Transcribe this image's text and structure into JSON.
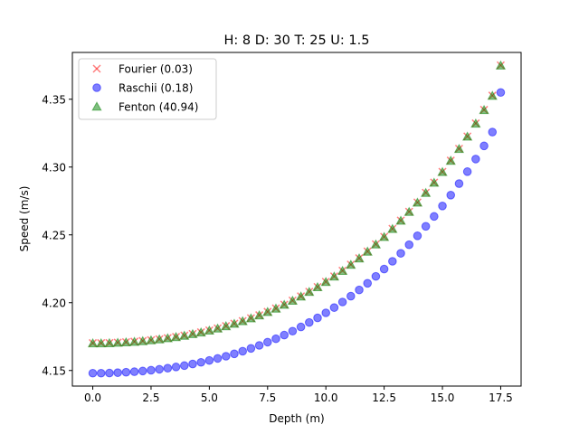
{
  "chart_data": {
    "type": "scatter",
    "title": "H: 8 D: 30 T: 25 U: 1.5",
    "xlabel": "Depth (m)",
    "ylabel": "Speed (m/s)",
    "xlim": [
      -0.875,
      18.375
    ],
    "ylim": [
      4.1385,
      4.3845
    ],
    "xticks": [
      0.0,
      2.5,
      5.0,
      7.5,
      10.0,
      12.5,
      15.0,
      17.5
    ],
    "xtick_labels": [
      "0.0",
      "2.5",
      "5.0",
      "7.5",
      "10.0",
      "12.5",
      "15.0",
      "17.5"
    ],
    "yticks": [
      4.15,
      4.2,
      4.25,
      4.3,
      4.35
    ],
    "ytick_labels": [
      "4.15",
      "4.20",
      "4.25",
      "4.30",
      "4.35"
    ],
    "grid": false,
    "legend_position": "top-left",
    "x": [
      0.0,
      0.357,
      0.714,
      1.071,
      1.429,
      1.786,
      2.143,
      2.5,
      2.857,
      3.214,
      3.571,
      3.929,
      4.286,
      4.643,
      5.0,
      5.357,
      5.714,
      6.071,
      6.429,
      6.786,
      7.143,
      7.5,
      7.857,
      8.214,
      8.571,
      8.929,
      9.286,
      9.643,
      10.0,
      10.357,
      10.714,
      11.071,
      11.429,
      11.786,
      12.143,
      12.5,
      12.857,
      13.214,
      13.571,
      13.929,
      14.286,
      14.643,
      15.0,
      15.357,
      15.714,
      16.071,
      16.429,
      16.786,
      17.143,
      17.5
    ],
    "series": [
      {
        "name": "Fourier (0.03)",
        "marker": "x",
        "color": "#ff0000",
        "values": [
          4.1702,
          4.1702,
          4.1703,
          4.1706,
          4.1709,
          4.1713,
          4.1718,
          4.1724,
          4.1731,
          4.1739,
          4.1748,
          4.1758,
          4.177,
          4.1782,
          4.1796,
          4.1811,
          4.1828,
          4.1846,
          4.1865,
          4.1886,
          4.1908,
          4.1933,
          4.1958,
          4.1986,
          4.2016,
          4.2047,
          4.2081,
          4.2116,
          4.2154,
          4.2194,
          4.2236,
          4.2281,
          4.2328,
          4.2378,
          4.2431,
          4.2486,
          4.2545,
          4.2606,
          4.2671,
          4.2739,
          4.2811,
          4.2886,
          4.2965,
          4.3048,
          4.3135,
          4.3226,
          4.3322,
          4.3422,
          4.3527,
          4.375
        ]
      },
      {
        "name": "Raschii (0.18)",
        "marker": "o",
        "color": "#0000ff",
        "values": [
          4.148,
          4.148,
          4.1481,
          4.1484,
          4.1487,
          4.1491,
          4.1496,
          4.1502,
          4.1509,
          4.1517,
          4.1526,
          4.1536,
          4.1548,
          4.156,
          4.1574,
          4.1589,
          4.1605,
          4.1623,
          4.1642,
          4.1663,
          4.1685,
          4.1709,
          4.1734,
          4.1761,
          4.179,
          4.1821,
          4.1854,
          4.1888,
          4.1925,
          4.1964,
          4.2005,
          4.2048,
          4.2094,
          4.2143,
          4.2194,
          4.2248,
          4.2305,
          4.2364,
          4.2427,
          4.2493,
          4.2563,
          4.2636,
          4.2713,
          4.2793,
          4.2878,
          4.2966,
          4.3059,
          4.3156,
          4.3258,
          4.355
        ]
      },
      {
        "name": "Fenton (40.94)",
        "marker": "^",
        "color": "#008000",
        "values": [
          4.17,
          4.17,
          4.1701,
          4.1704,
          4.1707,
          4.1711,
          4.1716,
          4.1722,
          4.1729,
          4.1737,
          4.1746,
          4.1756,
          4.1768,
          4.178,
          4.1794,
          4.1809,
          4.1826,
          4.1844,
          4.1863,
          4.1884,
          4.1906,
          4.1931,
          4.1956,
          4.1984,
          4.2014,
          4.2045,
          4.2079,
          4.2114,
          4.2152,
          4.2192,
          4.2234,
          4.2279,
          4.2326,
          4.2376,
          4.2429,
          4.2484,
          4.2543,
          4.2604,
          4.2669,
          4.2737,
          4.2809,
          4.2884,
          4.2963,
          4.3046,
          4.3133,
          4.3224,
          4.332,
          4.342,
          4.3525,
          4.3748
        ]
      }
    ]
  }
}
